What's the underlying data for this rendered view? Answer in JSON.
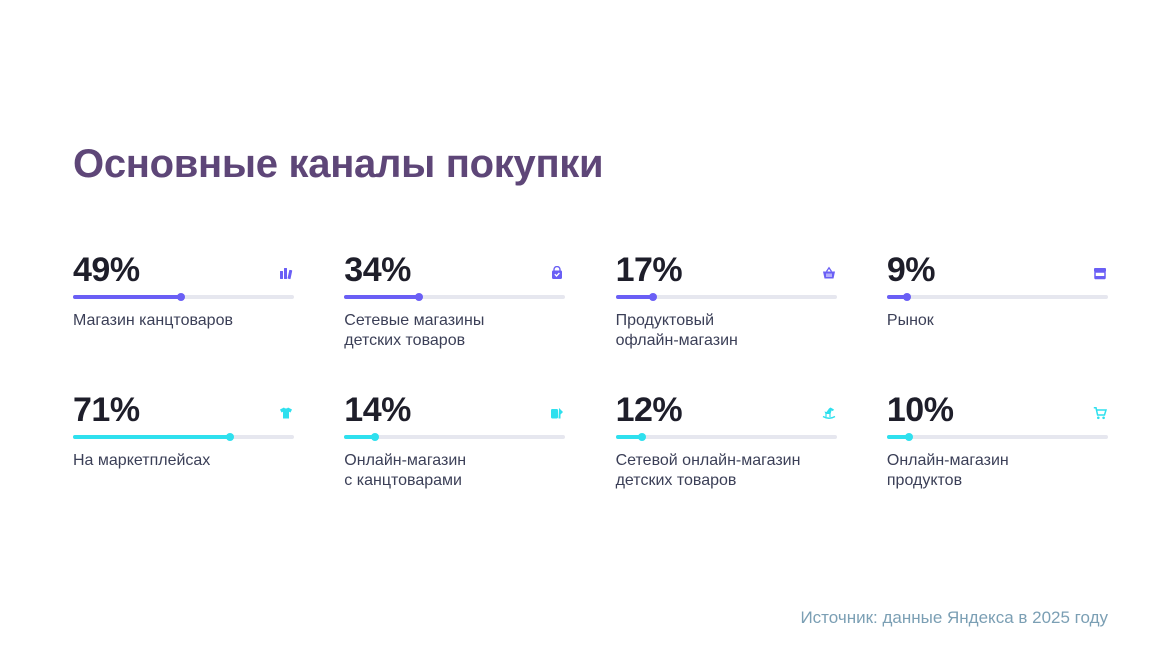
{
  "title": "Основные каналы покупки",
  "source": "Источник: данные Яндекса в 2025 году",
  "colors": {
    "offline": "#6a5ff5",
    "online": "#2ee0ee",
    "track": "#e6e7ef",
    "title": "#5e4678",
    "source": "#7b9fb4"
  },
  "chart_data": {
    "type": "bar",
    "title": "Основные каналы покупки",
    "unit": "%",
    "xlim": [
      0,
      100
    ],
    "series": [
      {
        "name": "offline",
        "items": [
          {
            "value": 49,
            "value_label": "49%",
            "label_lines": [
              "Магазин канцтоваров"
            ],
            "icon": "books-icon"
          },
          {
            "value": 34,
            "value_label": "34%",
            "label_lines": [
              "Сетевые магазины",
              "детских товаров"
            ],
            "icon": "shopping-bag-icon"
          },
          {
            "value": 17,
            "value_label": "17%",
            "label_lines": [
              "Продуктовый",
              "офлайн-магазин"
            ],
            "icon": "basket-icon"
          },
          {
            "value": 9,
            "value_label": "9%",
            "label_lines": [
              "Рынок"
            ],
            "icon": "market-stall-icon"
          }
        ]
      },
      {
        "name": "online",
        "items": [
          {
            "value": 71,
            "value_label": "71%",
            "label_lines": [
              "На маркетплейсах"
            ],
            "icon": "t-shirt-icon"
          },
          {
            "value": 14,
            "value_label": "14%",
            "label_lines": [
              "Онлайн-магазин",
              "с канцтоварами"
            ],
            "icon": "stationery-icon"
          },
          {
            "value": 12,
            "value_label": "12%",
            "label_lines": [
              "Сетевой онлайн-магазин",
              "детских товаров"
            ],
            "icon": "rocking-horse-icon"
          },
          {
            "value": 10,
            "value_label": "10%",
            "label_lines": [
              "Онлайн-магазин",
              "продуктов"
            ],
            "icon": "cart-icon"
          }
        ]
      }
    ]
  }
}
